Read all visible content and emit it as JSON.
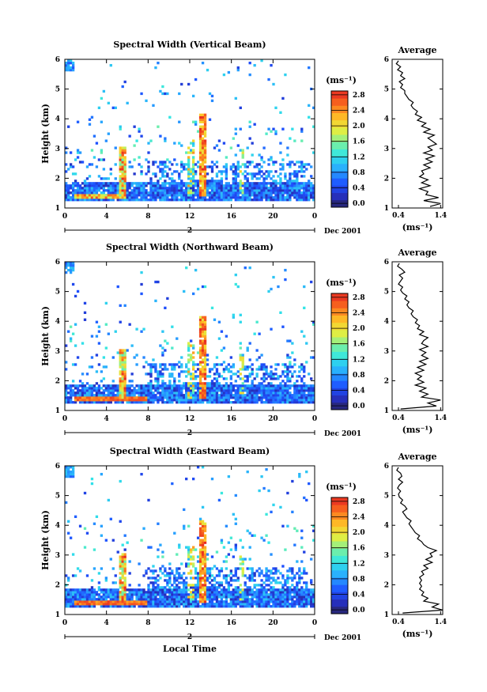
{
  "chart_data": [
    {
      "type": "heatmap",
      "title": "Spectral Width (Vertical Beam)",
      "ylabel": "Height (km)",
      "ylim": [
        1,
        6
      ],
      "yticks": [
        "1",
        "2",
        "3",
        "4",
        "5",
        "6"
      ],
      "xlim": [
        0,
        24
      ],
      "xticks": [
        "0",
        "4",
        "8",
        "12",
        "16",
        "20",
        "0"
      ],
      "date_marker": "2",
      "date_label": "Dec 2001",
      "colorbar": {
        "unit": "(ms⁻¹)",
        "ticks": [
          "0.0",
          "0.4",
          "0.8",
          "1.2",
          "1.6",
          "2.0",
          "2.4",
          "2.8"
        ],
        "range": [
          0,
          3.0
        ]
      },
      "average_profile": {
        "title": "Average",
        "xlabel": "(ms⁻¹)",
        "xticks": [
          "0.4",
          "1.4"
        ],
        "xlim": [
          0.25,
          1.45
        ],
        "height": [
          1.05,
          1.15,
          1.25,
          1.35,
          1.45,
          1.55,
          1.65,
          1.75,
          1.85,
          1.95,
          2.05,
          2.15,
          2.25,
          2.35,
          2.45,
          2.55,
          2.65,
          2.75,
          2.85,
          2.95,
          3.05,
          3.15,
          3.25,
          3.35,
          3.45,
          3.55,
          3.65,
          3.75,
          3.85,
          3.95,
          4.05,
          4.15,
          4.25,
          4.35,
          4.45,
          4.55,
          4.65,
          4.75,
          4.85,
          4.95,
          5.05,
          5.15,
          5.25,
          5.35,
          5.45,
          5.55,
          5.65,
          5.75,
          5.85,
          5.95
        ],
        "width": [
          1.15,
          1.4,
          1.0,
          1.35,
          1.05,
          1.1,
          0.9,
          1.15,
          0.95,
          1.1,
          0.9,
          1.0,
          0.95,
          1.15,
          1.0,
          1.2,
          1.05,
          1.25,
          1.0,
          1.2,
          1.1,
          1.3,
          1.2,
          1.1,
          1.25,
          1.0,
          1.15,
          0.95,
          1.05,
          0.85,
          0.95,
          0.8,
          0.85,
          0.75,
          0.7,
          0.75,
          0.65,
          0.6,
          0.55,
          0.55,
          0.45,
          0.5,
          0.42,
          0.55,
          0.45,
          0.5,
          0.38,
          0.45,
          0.35,
          0.4
        ]
      }
    },
    {
      "type": "heatmap",
      "title": "Spectral Width (Northward Beam)",
      "ylabel": "Height (km)",
      "ylim": [
        1,
        6
      ],
      "yticks": [
        "1",
        "2",
        "3",
        "4",
        "5",
        "6"
      ],
      "xlim": [
        0,
        24
      ],
      "xticks": [
        "0",
        "4",
        "8",
        "12",
        "16",
        "20",
        "0"
      ],
      "date_marker": "2",
      "date_label": "Dec 2001",
      "colorbar": {
        "unit": "(ms⁻¹)",
        "ticks": [
          "0.0",
          "0.4",
          "0.8",
          "1.2",
          "1.6",
          "2.0",
          "2.4",
          "2.8"
        ],
        "range": [
          0,
          3.0
        ]
      },
      "average_profile": {
        "title": "Average",
        "xlabel": "(ms⁻¹)",
        "xticks": [
          "0.4",
          "1.4"
        ],
        "xlim": [
          0.25,
          1.45
        ],
        "height": [
          1.05,
          1.15,
          1.25,
          1.35,
          1.45,
          1.55,
          1.65,
          1.75,
          1.85,
          1.95,
          2.05,
          2.15,
          2.25,
          2.35,
          2.45,
          2.55,
          2.65,
          2.75,
          2.85,
          2.95,
          3.05,
          3.15,
          3.25,
          3.35,
          3.45,
          3.55,
          3.65,
          3.75,
          3.85,
          3.95,
          4.05,
          4.15,
          4.25,
          4.35,
          4.45,
          4.55,
          4.65,
          4.75,
          4.85,
          4.95,
          5.05,
          5.15,
          5.25,
          5.35,
          5.45,
          5.55,
          5.65,
          5.75,
          5.85,
          5.95
        ],
        "width": [
          0.45,
          1.3,
          1.1,
          1.4,
          0.95,
          1.1,
          0.9,
          1.05,
          0.8,
          1.0,
          0.85,
          0.95,
          0.8,
          1.0,
          0.85,
          1.05,
          0.9,
          1.1,
          0.95,
          1.05,
          0.9,
          1.1,
          0.95,
          1.0,
          1.1,
          0.9,
          1.0,
          0.85,
          0.9,
          0.8,
          0.85,
          0.75,
          0.7,
          0.75,
          0.65,
          0.6,
          0.65,
          0.55,
          0.6,
          0.5,
          0.45,
          0.5,
          0.4,
          0.45,
          0.5,
          0.42,
          0.55,
          0.48,
          0.38,
          0.42
        ]
      }
    },
    {
      "type": "heatmap",
      "title": "Spectral Width (Eastward Beam)",
      "ylabel": "Height (km)",
      "xlabel": "Local Time",
      "ylim": [
        1,
        6
      ],
      "yticks": [
        "1",
        "2",
        "3",
        "4",
        "5",
        "6"
      ],
      "xlim": [
        0,
        24
      ],
      "xticks": [
        "0",
        "4",
        "8",
        "12",
        "16",
        "20",
        "0"
      ],
      "date_marker": "2",
      "date_label": "Dec 2001",
      "colorbar": {
        "unit": "(ms⁻¹)",
        "ticks": [
          "0.0",
          "0.4",
          "0.8",
          "1.2",
          "1.6",
          "2.0",
          "2.4",
          "2.8"
        ],
        "range": [
          0,
          3.0
        ]
      },
      "average_profile": {
        "title": "Average",
        "xlabel": "(ms⁻¹)",
        "xticks": [
          "0.4",
          "1.4"
        ],
        "xlim": [
          0.25,
          1.45
        ],
        "height": [
          1.05,
          1.15,
          1.25,
          1.35,
          1.45,
          1.55,
          1.65,
          1.75,
          1.85,
          1.95,
          2.05,
          2.15,
          2.25,
          2.35,
          2.45,
          2.55,
          2.65,
          2.75,
          2.85,
          2.95,
          3.05,
          3.15,
          3.25,
          3.35,
          3.45,
          3.55,
          3.65,
          3.75,
          3.85,
          3.95,
          4.05,
          4.15,
          4.25,
          4.35,
          4.45,
          4.55,
          4.65,
          4.75,
          4.85,
          4.95,
          5.05,
          5.15,
          5.25,
          5.35,
          5.45,
          5.55,
          5.65,
          5.75,
          5.85,
          5.95
        ],
        "width": [
          0.5,
          1.45,
          1.2,
          1.35,
          1.0,
          1.1,
          0.95,
          1.0,
          0.9,
          0.95,
          0.9,
          0.95,
          0.9,
          1.0,
          0.95,
          1.1,
          1.0,
          1.2,
          1.05,
          1.2,
          1.15,
          1.3,
          1.1,
          1.0,
          0.95,
          0.85,
          0.9,
          0.8,
          0.75,
          0.7,
          0.65,
          0.7,
          0.6,
          0.55,
          0.5,
          0.6,
          0.55,
          0.45,
          0.5,
          0.42,
          0.4,
          0.45,
          0.38,
          0.42,
          0.5,
          0.4,
          0.48,
          0.45,
          0.36,
          0.4
        ]
      }
    }
  ]
}
